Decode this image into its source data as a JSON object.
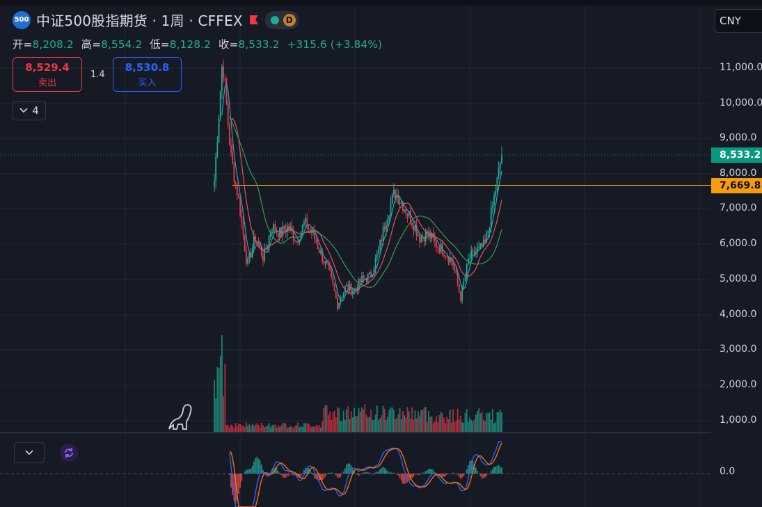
{
  "header": {
    "symbol_badge": "500",
    "title": "中证500股指期货 · 1周 · CFFEX",
    "status_badge": "D",
    "icons": [
      "market-flag-icon",
      "market-open-dot-icon"
    ]
  },
  "ohlc": {
    "open_label": "开=",
    "open": "8,208.2",
    "high_label": "高=",
    "high": "8,554.2",
    "low_label": "低=",
    "low": "8,128.2",
    "close_label": "收=",
    "close": "8,533.2",
    "change": "+315.6 (+3.84%)"
  },
  "trade": {
    "sell_price": "8,529.4",
    "sell_label": "卖出",
    "spread": "1.4",
    "buy_price": "8,530.8",
    "buy_label": "买入"
  },
  "indicators_toggle": {
    "count": "4"
  },
  "currency": "CNY",
  "price_axis": {
    "labels": [
      "11,000.0",
      "10,000.0",
      "9,000.0",
      "8,000.0",
      "7,000.0",
      "6,000.0",
      "5,000.0",
      "4,000.0",
      "3,000.0",
      "2,000.0",
      "1,000.0"
    ],
    "values": [
      11000,
      10000,
      9000,
      8000,
      7000,
      6000,
      5000,
      4000,
      3000,
      2000,
      1000
    ]
  },
  "last_price_tag": {
    "text": "8,533.2",
    "value": 8533.2,
    "color": "#089981"
  },
  "level_tag": {
    "text": "7,669.8",
    "value": 7669.8,
    "color": "#f59d0e"
  },
  "lower_pane": {
    "zero_label": "0.0"
  },
  "colors": {
    "up": "#22ab94",
    "down": "#f23645",
    "ma_fast": "#2aa3b8",
    "ma_mid": "#e05462",
    "ma_slow": "#3d9a52",
    "macd": "#2962ff",
    "signal": "#ff6d00"
  },
  "chart_data": {
    "type": "line",
    "title": "中证500股指期货 · 1周 · CFFEX",
    "ylim": [
      3700,
      11600
    ],
    "y_scale": "log",
    "x_labels": [],
    "series": [
      {
        "name": "",
        "values": [
          7800,
          11300,
          8500,
          7200,
          5400,
          6200,
          5600,
          6500,
          6300,
          6500,
          6100,
          6600,
          6300,
          5700,
          5200,
          4300,
          4800,
          4700,
          5000,
          5100,
          5800,
          6800,
          7500,
          7100,
          6700,
          6200,
          6300,
          6000,
          5800,
          5500,
          4500,
          5600,
          5800,
          6000,
          7200,
          8533
        ]
      }
    ]
  }
}
